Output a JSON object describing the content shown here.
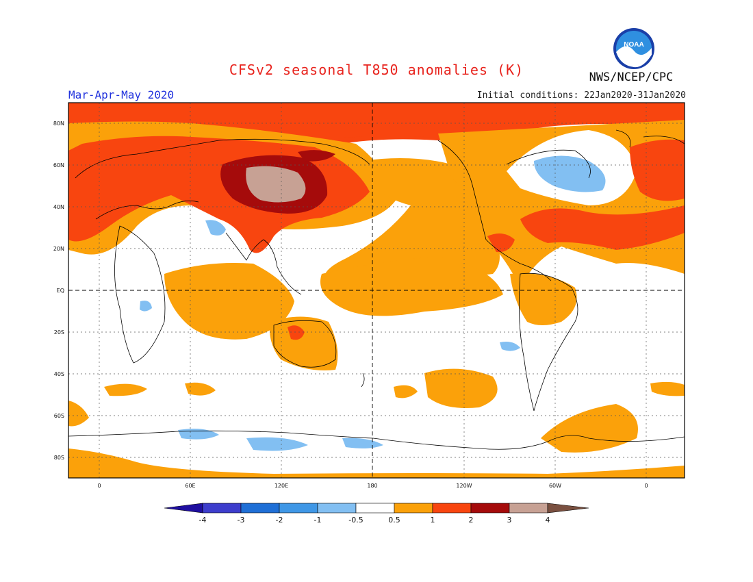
{
  "title": "CFSv2 seasonal T850 anomalies (K)",
  "agency": "NWS/NCEP/CPC",
  "logo_text": "NOAA",
  "season": "Mar-Apr-May 2020",
  "initial_conditions": "Initial conditions: 22Jan2020-31Jan2020",
  "lat_labels": [
    "80N",
    "60N",
    "40N",
    "20N",
    "EQ",
    "20S",
    "40S",
    "60S",
    "80S"
  ],
  "lon_labels": [
    "0",
    "60E",
    "120E",
    "180",
    "120W",
    "60W",
    "0"
  ],
  "colorbar": {
    "levels": [
      "-4",
      "-3",
      "-2",
      "-1",
      "-0.5",
      "0.5",
      "1",
      "2",
      "3",
      "4"
    ],
    "colors": [
      "#1f0fa0",
      "#3d3dcc",
      "#1f6fd6",
      "#3f97e6",
      "#82bff2",
      "#ffffff",
      "#fba10a",
      "#f8450f",
      "#a50b0b",
      "#c7a194",
      "#7a5040"
    ]
  },
  "map": {
    "ocean_land_base": "#ffffff",
    "anomaly_colors": {
      "weak_warm": "#fba10a",
      "warm": "#f8450f",
      "strong_warm": "#a50b0b",
      "extreme_warm": "#c7a194",
      "weak_cold": "#82bff2"
    }
  }
}
